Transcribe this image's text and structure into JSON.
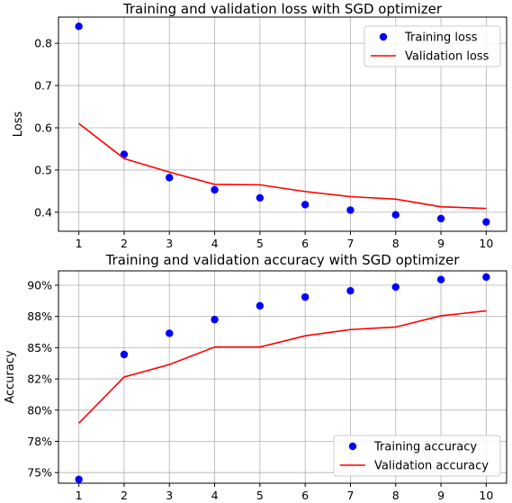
{
  "chart_data": [
    {
      "type": "line",
      "title": "Training and validation loss with SGD optimizer",
      "xlabel": "",
      "ylabel": "Loss",
      "x": [
        1,
        2,
        3,
        4,
        5,
        6,
        7,
        8,
        9,
        10
      ],
      "x_ticks": [
        "1",
        "2",
        "3",
        "4",
        "5",
        "6",
        "7",
        "8",
        "9",
        "10"
      ],
      "y_ticks": [
        0.4,
        0.5,
        0.6,
        0.7,
        0.8
      ],
      "y_tick_labels": [
        "0.4",
        "0.5",
        "0.6",
        "0.7",
        "0.8"
      ],
      "ylim": [
        0.355,
        0.862
      ],
      "xlim": [
        0.55,
        10.45
      ],
      "grid": true,
      "legend_position": "upper right",
      "series": [
        {
          "name": "Training loss",
          "style": "markers",
          "color": "#0000ff",
          "values": [
            0.84,
            0.537,
            0.482,
            0.453,
            0.434,
            0.418,
            0.405,
            0.394,
            0.385,
            0.377
          ]
        },
        {
          "name": "Validation loss",
          "style": "line",
          "color": "#ff0000",
          "values": [
            0.61,
            0.527,
            0.495,
            0.466,
            0.465,
            0.449,
            0.437,
            0.431,
            0.413,
            0.409
          ]
        }
      ]
    },
    {
      "type": "line",
      "title": "Training and validation accuracy with SGD optimizer",
      "xlabel": "",
      "ylabel": "Accuracy",
      "x": [
        1,
        2,
        3,
        4,
        5,
        6,
        7,
        8,
        9,
        10
      ],
      "x_ticks": [
        "1",
        "2",
        "3",
        "4",
        "5",
        "6",
        "7",
        "8",
        "9",
        "10"
      ],
      "y_ticks": [
        0.75,
        0.775,
        0.8,
        0.825,
        0.85,
        0.875,
        0.9
      ],
      "y_tick_labels": [
        "75%",
        "78%",
        "80%",
        "82%",
        "85%",
        "88%",
        "90%"
      ],
      "ylim": [
        0.7415,
        0.9115
      ],
      "xlim": [
        0.55,
        10.45
      ],
      "grid": true,
      "legend_position": "lower right",
      "series": [
        {
          "name": "Training accuracy",
          "style": "markers",
          "color": "#0000ff",
          "values": [
            0.7445,
            0.8445,
            0.8615,
            0.8725,
            0.8835,
            0.8905,
            0.8955,
            0.8985,
            0.9045,
            0.9065
          ]
        },
        {
          "name": "Validation accuracy",
          "style": "line",
          "color": "#ff0000",
          "values": [
            0.7895,
            0.8265,
            0.8365,
            0.8505,
            0.8505,
            0.8595,
            0.8645,
            0.8665,
            0.8755,
            0.8795
          ]
        }
      ]
    }
  ]
}
